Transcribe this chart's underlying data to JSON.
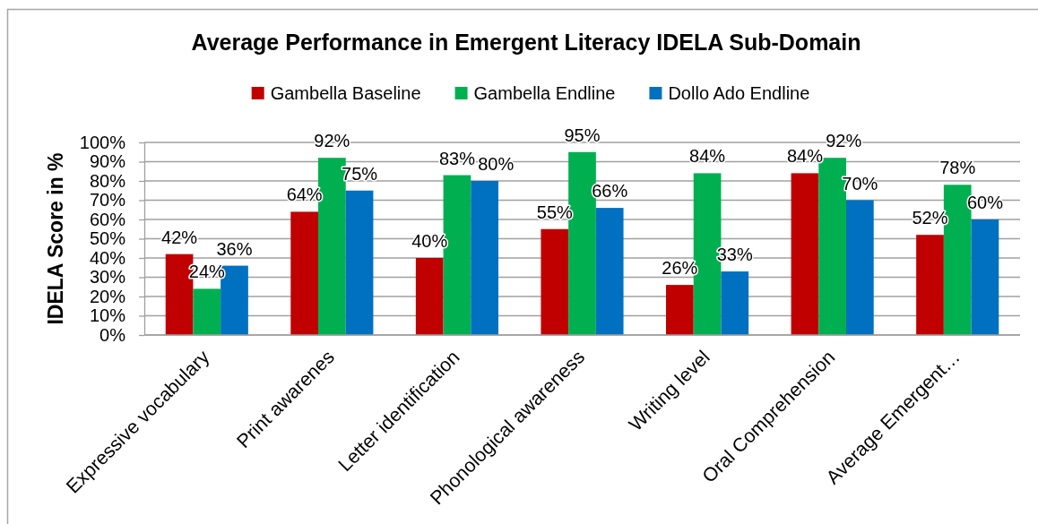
{
  "chart_data": {
    "type": "bar",
    "title": "Average Performance in Emergent Literacy IDELA Sub-Domain",
    "ylabel": "IDELA Score in %",
    "categories": [
      "Expressive vocabulary",
      "Print awarenes",
      "Letter identification",
      "Phonological awareness",
      "Writing level",
      "Oral Comprehension",
      "Average Emergent…"
    ],
    "series": [
      {
        "name": "Gambella Baseline",
        "color": "#c00000",
        "values": [
          42,
          64,
          40,
          55,
          26,
          84,
          52
        ],
        "value_labels": [
          "42%",
          "64%",
          "40%",
          "55%",
          "26%",
          "84%",
          "52%"
        ]
      },
      {
        "name": "Gambella Endline",
        "color": "#00b050",
        "values": [
          24,
          92,
          83,
          95,
          84,
          92,
          78
        ],
        "value_labels": [
          "24%",
          "92%",
          "83%",
          "95%",
          "84%",
          "92%",
          "78%"
        ]
      },
      {
        "name": "Dollo Ado Endline",
        "color": "#0070c0",
        "values": [
          36,
          75,
          80,
          66,
          33,
          70,
          60
        ],
        "value_labels": [
          "36%",
          "75%",
          "80%",
          "66%",
          "33%",
          "70%",
          "60%"
        ]
      }
    ],
    "ylim": [
      0,
      100
    ],
    "yticks": [
      {
        "value": 0,
        "label": "0%"
      },
      {
        "value": 10,
        "label": "10%"
      },
      {
        "value": 20,
        "label": "20%"
      },
      {
        "value": 30,
        "label": "30%"
      },
      {
        "value": 40,
        "label": "40%"
      },
      {
        "value": 50,
        "label": "50%"
      },
      {
        "value": 60,
        "label": "60%"
      },
      {
        "value": 70,
        "label": "70%"
      },
      {
        "value": 80,
        "label": "80%"
      },
      {
        "value": 90,
        "label": "90%"
      },
      {
        "value": 100,
        "label": "100%"
      }
    ],
    "grid": "y",
    "legend": "top"
  }
}
